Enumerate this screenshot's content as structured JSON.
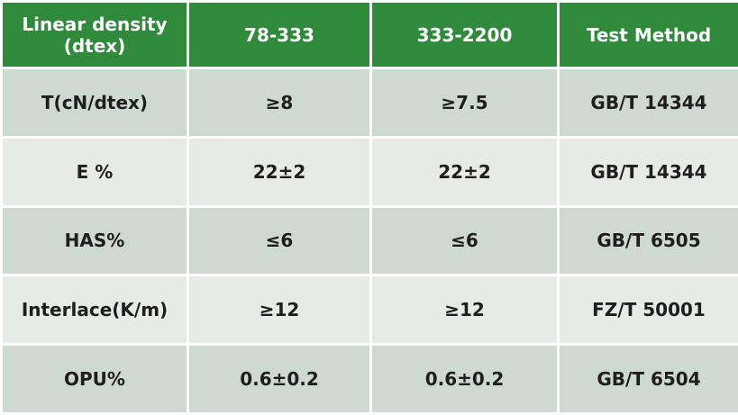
{
  "table": {
    "header": [
      "Linear density (dtex)",
      "78-333",
      "333-2200",
      "Test Method"
    ],
    "rows": [
      [
        "T(cN/dtex)",
        "≥8",
        "≥7.5",
        "GB/T 14344"
      ],
      [
        "E %",
        "22±2",
        "22±2",
        "GB/T 14344"
      ],
      [
        "HAS%",
        "≤6",
        "≤6",
        "GB/T 6505"
      ],
      [
        "Interlace(K/m)",
        "≥12",
        "≥12",
        "FZ/T 50001"
      ],
      [
        "OPU%",
        "0.6±0.2",
        "0.6±0.2",
        "GB/T 6504"
      ]
    ]
  }
}
